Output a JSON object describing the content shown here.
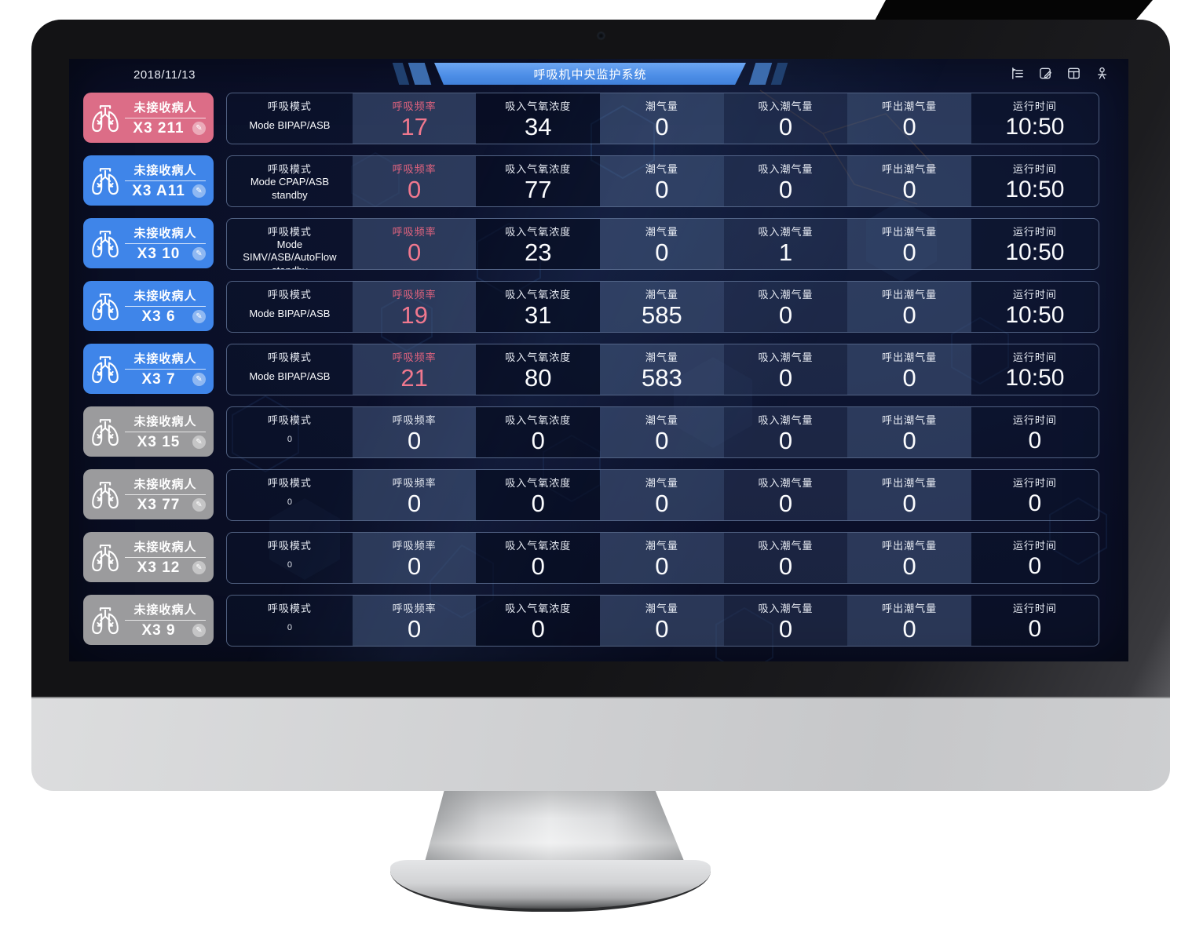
{
  "window": {
    "date": "2018/11/13",
    "title": "呼吸机中央监护系统"
  },
  "header": {
    "icons": [
      {
        "name": "menu-collapse-icon"
      },
      {
        "name": "edit-note-icon"
      },
      {
        "name": "window-layout-icon"
      },
      {
        "name": "user-icon"
      }
    ]
  },
  "table": {
    "columns": [
      "呼吸模式",
      "呼吸频率",
      "吸入气氧浓度",
      "潮气量",
      "吸入潮气量",
      "呼出潮气量",
      "运行时间"
    ]
  },
  "colors": {
    "card_alarm_pink": "#dc6d87",
    "card_online_blue": "#3f85e9",
    "card_offline_gray": "#9b9b9d",
    "rate_accent_pink": "#f0788e",
    "banner_blue": "#4c8de6",
    "screen_navy": "#0b102a"
  },
  "patients": [
    {
      "id": "X3 211",
      "status": "未接收病人",
      "card_color": "#dc6d87",
      "online": true,
      "mode": "Mode BIPAP/ASB",
      "rate": "17",
      "fio2": "34",
      "tidal": "0",
      "insp_tidal": "0",
      "exp_tidal": "0",
      "runtime": "10:50"
    },
    {
      "id": "X3 A11",
      "status": "未接收病人",
      "card_color": "#3f85e9",
      "online": true,
      "mode": "Mode CPAP/ASB standby",
      "rate": "0",
      "fio2": "77",
      "tidal": "0",
      "insp_tidal": "0",
      "exp_tidal": "0",
      "runtime": "10:50"
    },
    {
      "id": "X3 10",
      "status": "未接收病人",
      "card_color": "#3f85e9",
      "online": true,
      "mode": "Mode SIMV/ASB/AutoFlow standby",
      "rate": "0",
      "fio2": "23",
      "tidal": "0",
      "insp_tidal": "1",
      "exp_tidal": "0",
      "runtime": "10:50"
    },
    {
      "id": "X3 6",
      "status": "未接收病人",
      "card_color": "#3f85e9",
      "online": true,
      "mode": "Mode BIPAP/ASB",
      "rate": "19",
      "fio2": "31",
      "tidal": "585",
      "insp_tidal": "0",
      "exp_tidal": "0",
      "runtime": "10:50"
    },
    {
      "id": "X3 7",
      "status": "未接收病人",
      "card_color": "#3f85e9",
      "online": true,
      "mode": "Mode BIPAP/ASB",
      "rate": "21",
      "fio2": "80",
      "tidal": "583",
      "insp_tidal": "0",
      "exp_tidal": "0",
      "runtime": "10:50"
    },
    {
      "id": "X3 15",
      "status": "未接收病人",
      "card_color": "#9b9b9d",
      "online": false,
      "mode": "0",
      "rate": "0",
      "fio2": "0",
      "tidal": "0",
      "insp_tidal": "0",
      "exp_tidal": "0",
      "runtime": "0"
    },
    {
      "id": "X3 77",
      "status": "未接收病人",
      "card_color": "#9b9b9d",
      "online": false,
      "mode": "0",
      "rate": "0",
      "fio2": "0",
      "tidal": "0",
      "insp_tidal": "0",
      "exp_tidal": "0",
      "runtime": "0"
    },
    {
      "id": "X3 12",
      "status": "未接收病人",
      "card_color": "#9b9b9d",
      "online": false,
      "mode": "0",
      "rate": "0",
      "fio2": "0",
      "tidal": "0",
      "insp_tidal": "0",
      "exp_tidal": "0",
      "runtime": "0"
    },
    {
      "id": "X3 9",
      "status": "未接收病人",
      "card_color": "#9b9b9d",
      "online": false,
      "mode": "0",
      "rate": "0",
      "fio2": "0",
      "tidal": "0",
      "insp_tidal": "0",
      "exp_tidal": "0",
      "runtime": "0"
    }
  ]
}
